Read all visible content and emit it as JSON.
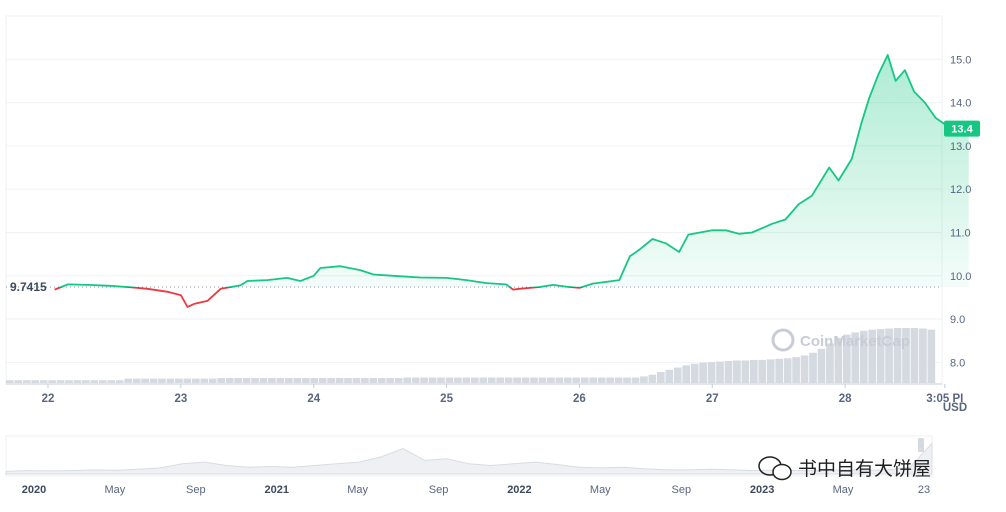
{
  "chart_data": {
    "type": "line",
    "y_axis_ticks": [
      "8.0",
      "9.0",
      "10.0",
      "11.0",
      "12.0",
      "13.0",
      "14.0",
      "15.0"
    ],
    "ylim": [
      7.5,
      16.0
    ],
    "xlim": [
      22.0,
      29.0
    ],
    "x_ticks": [
      {
        "value": 22,
        "label": "22"
      },
      {
        "value": 23,
        "label": "23"
      },
      {
        "value": 24,
        "label": "24"
      },
      {
        "value": 25,
        "label": "25"
      },
      {
        "value": 26,
        "label": "26"
      },
      {
        "value": 27,
        "label": "27"
      },
      {
        "value": 28,
        "label": "28"
      },
      {
        "value": 28.75,
        "label": "3:05 PI"
      }
    ],
    "currency_label": "USD",
    "reference_price": {
      "value": 9.7415,
      "label": "9.7415"
    },
    "current_price": {
      "value": 13.4,
      "label": "13.4"
    },
    "colors": {
      "up": "#16c784",
      "down": "#ea3943",
      "badge": "#16c784"
    },
    "series": [
      {
        "values": [
          [
            22.05,
            9.68
          ],
          [
            22.15,
            9.8
          ],
          [
            22.3,
            9.79
          ],
          [
            22.45,
            9.77
          ],
          [
            22.6,
            9.74
          ],
          [
            22.75,
            9.7
          ],
          [
            22.9,
            9.63
          ],
          [
            23.0,
            9.55
          ],
          [
            23.05,
            9.28
          ],
          [
            23.1,
            9.35
          ],
          [
            23.2,
            9.42
          ],
          [
            23.3,
            9.7
          ],
          [
            23.45,
            9.78
          ],
          [
            23.5,
            9.88
          ],
          [
            23.65,
            9.9
          ],
          [
            23.8,
            9.95
          ],
          [
            23.9,
            9.88
          ],
          [
            24.0,
            10.0
          ],
          [
            24.05,
            10.18
          ],
          [
            24.2,
            10.22
          ],
          [
            24.35,
            10.13
          ],
          [
            24.45,
            10.03
          ],
          [
            24.6,
            10.0
          ],
          [
            24.8,
            9.96
          ],
          [
            25.0,
            9.95
          ],
          [
            25.15,
            9.9
          ],
          [
            25.3,
            9.83
          ],
          [
            25.45,
            9.8
          ],
          [
            25.5,
            9.68
          ],
          [
            25.55,
            9.7
          ],
          [
            25.7,
            9.74
          ],
          [
            25.8,
            9.79
          ],
          [
            25.9,
            9.75
          ],
          [
            26.0,
            9.72
          ],
          [
            26.1,
            9.82
          ],
          [
            26.3,
            9.9
          ],
          [
            26.38,
            10.45
          ],
          [
            26.45,
            10.6
          ],
          [
            26.55,
            10.85
          ],
          [
            26.65,
            10.75
          ],
          [
            26.75,
            10.55
          ],
          [
            26.82,
            10.95
          ],
          [
            27.0,
            11.05
          ],
          [
            27.1,
            11.05
          ],
          [
            27.2,
            10.97
          ],
          [
            27.3,
            11.0
          ],
          [
            27.45,
            11.2
          ],
          [
            27.55,
            11.3
          ],
          [
            27.65,
            11.65
          ],
          [
            27.75,
            11.85
          ],
          [
            27.88,
            12.5
          ],
          [
            27.95,
            12.2
          ],
          [
            28.05,
            12.7
          ],
          [
            28.12,
            13.5
          ],
          [
            28.18,
            14.1
          ],
          [
            28.25,
            14.65
          ],
          [
            28.32,
            15.1
          ],
          [
            28.38,
            14.5
          ],
          [
            28.45,
            14.75
          ],
          [
            28.52,
            14.25
          ],
          [
            28.6,
            14.0
          ],
          [
            28.68,
            13.65
          ],
          [
            28.75,
            13.5
          ],
          [
            28.82,
            13.42
          ],
          [
            28.88,
            13.45
          ],
          [
            28.93,
            13.4
          ]
        ]
      }
    ],
    "volume": [
      0.05,
      0.05,
      0.05,
      0.05,
      0.05,
      0.05,
      0.05,
      0.05,
      0.05,
      0.05,
      0.05,
      0.05,
      0.05,
      0.05,
      0.08,
      0.08,
      0.08,
      0.08,
      0.08,
      0.08,
      0.08,
      0.08,
      0.08,
      0.08,
      0.08,
      0.09,
      0.09,
      0.09,
      0.09,
      0.09,
      0.09,
      0.09,
      0.09,
      0.09,
      0.09,
      0.09,
      0.09,
      0.09,
      0.09,
      0.09,
      0.09,
      0.09,
      0.09,
      0.09,
      0.09,
      0.09,
      0.09,
      0.1,
      0.1,
      0.1,
      0.1,
      0.1,
      0.1,
      0.1,
      0.1,
      0.1,
      0.1,
      0.1,
      0.1,
      0.1,
      0.1,
      0.1,
      0.1,
      0.1,
      0.1,
      0.1,
      0.1,
      0.1,
      0.1,
      0.1,
      0.1,
      0.1,
      0.1,
      0.1,
      0.1,
      0.12,
      0.15,
      0.2,
      0.24,
      0.28,
      0.32,
      0.35,
      0.37,
      0.38,
      0.39,
      0.4,
      0.41,
      0.41,
      0.42,
      0.42,
      0.43,
      0.44,
      0.45,
      0.47,
      0.5,
      0.55,
      0.62,
      0.72,
      0.82,
      0.88,
      0.92,
      0.95,
      0.97,
      0.98,
      0.99,
      1.0,
      1.0,
      1.0,
      0.99,
      0.97
    ],
    "navigator": {
      "ticks": [
        {
          "value": 0.0,
          "label": "2020",
          "strong": true
        },
        {
          "value": 0.0833,
          "label": "May"
        },
        {
          "value": 0.1667,
          "label": "Sep"
        },
        {
          "value": 0.25,
          "label": "2021",
          "strong": true
        },
        {
          "value": 0.3333,
          "label": "May"
        },
        {
          "value": 0.4167,
          "label": "Sep"
        },
        {
          "value": 0.5,
          "label": "2022",
          "strong": true
        },
        {
          "value": 0.5833,
          "label": "May"
        },
        {
          "value": 0.6667,
          "label": "Sep"
        },
        {
          "value": 0.75,
          "label": "2023",
          "strong": true
        },
        {
          "value": 0.8333,
          "label": "May"
        },
        {
          "value": 0.9167,
          "label": "23"
        }
      ],
      "profile": [
        0.08,
        0.1,
        0.09,
        0.1,
        0.12,
        0.11,
        0.14,
        0.18,
        0.3,
        0.35,
        0.25,
        0.2,
        0.22,
        0.2,
        0.25,
        0.3,
        0.35,
        0.5,
        0.75,
        0.4,
        0.45,
        0.3,
        0.25,
        0.3,
        0.35,
        0.28,
        0.2,
        0.18,
        0.2,
        0.15,
        0.12,
        0.12,
        0.14,
        0.12,
        0.1,
        0.12,
        0.1,
        0.1,
        0.12,
        0.11,
        0.12,
        0.2,
        0.9
      ]
    }
  },
  "watermark": {
    "brand": "CoinMarketCap"
  },
  "wechat_watermark": {
    "text": "书中自有大饼屋"
  }
}
